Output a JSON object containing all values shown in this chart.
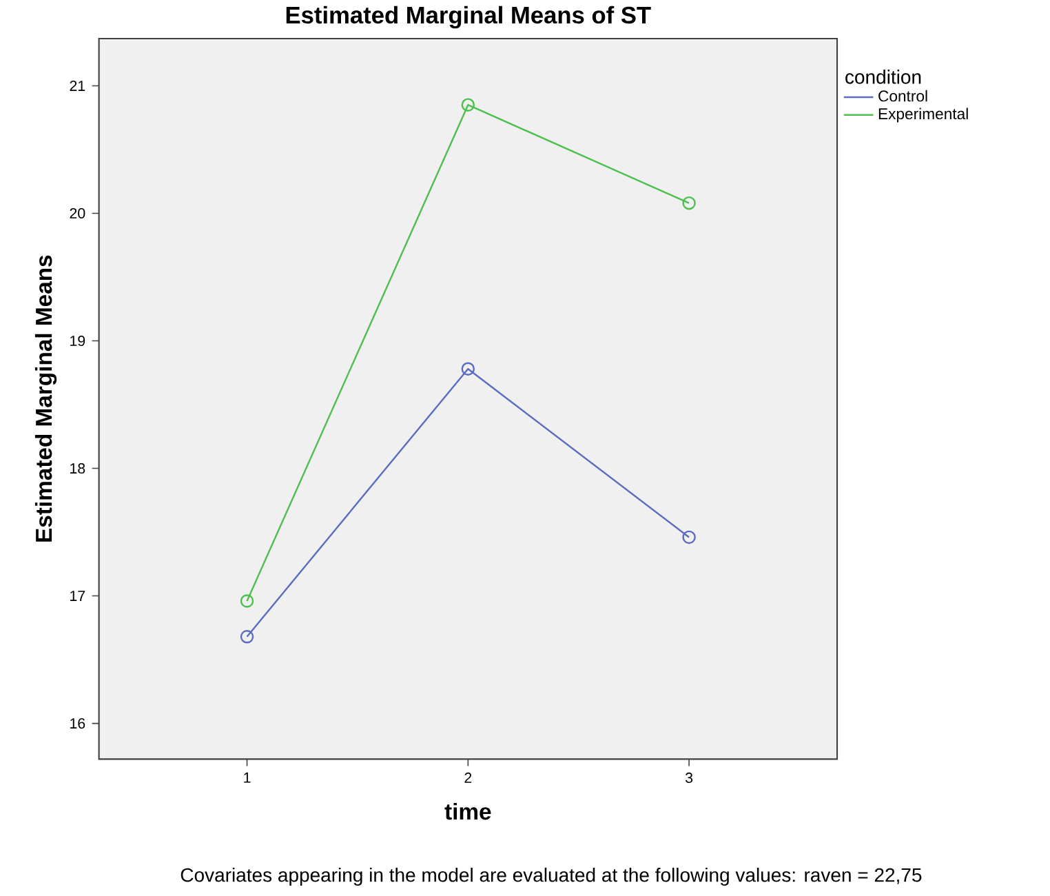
{
  "chart_data": {
    "type": "line",
    "title": "Estimated Marginal Means of ST",
    "xlabel": "time",
    "ylabel": "Estimated Marginal Means",
    "legend_title": "condition",
    "x": [
      1,
      2,
      3
    ],
    "series": [
      {
        "name": "Control",
        "color": "#5a6bc0",
        "values": [
          16.68,
          18.78,
          17.46
        ]
      },
      {
        "name": "Experimental",
        "color": "#4cbf4c",
        "values": [
          16.96,
          20.85,
          20.08
        ]
      }
    ],
    "xlim": [
      0.33,
      3.67
    ],
    "xticks": [
      1,
      2,
      3
    ],
    "ylim": [
      15.72,
      21.37
    ],
    "yticks": [
      16,
      17,
      18,
      19,
      20,
      21
    ],
    "marker": "circle",
    "line_style": "solid",
    "legend": "right",
    "grid": false,
    "annotations": [
      "Covariates appearing in the model are evaluated at the following values: raven = 22,75"
    ]
  }
}
